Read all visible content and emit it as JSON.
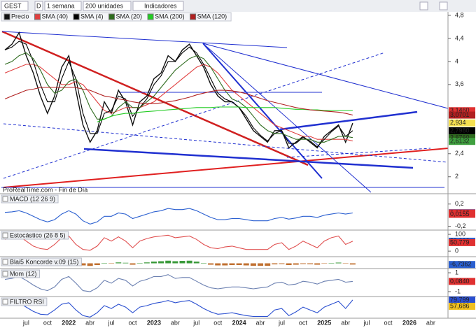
{
  "toolbar": {
    "symbol": "GEST",
    "period": "D",
    "interval": "1 semana",
    "units": "200 unidades",
    "indicators": "Indicadores"
  },
  "watermark": "ProRealTime.com - Fin de Día",
  "chart_data": [
    {
      "type": "line",
      "categories": [
        null,
        null,
        null,
        "jul",
        null,
        null,
        "oct",
        null,
        null,
        "2022",
        null,
        null,
        "abr",
        null,
        null,
        "jul",
        null,
        null,
        "oct",
        null,
        null,
        "2023",
        null,
        null,
        "abr",
        null,
        null,
        "jul",
        null,
        null,
        "oct",
        null,
        null,
        "2024",
        null,
        null,
        "abr",
        null,
        null,
        "jul",
        null,
        null,
        "oct",
        null,
        null,
        "2025",
        null,
        null,
        "abr",
        null,
        null,
        "jul",
        null,
        null,
        "oct",
        null,
        null,
        "2026",
        null,
        null,
        "abr"
      ],
      "series": [
        {
          "name": "Precio",
          "color": "#111111",
          "values": [
            4.2,
            4.3,
            4.5,
            4.1,
            3.8,
            3.4,
            3.1,
            3.4,
            3.9,
            4.1,
            3.5,
            2.9,
            2.6,
            2.8,
            3.3,
            3.1,
            3.5,
            3.3,
            2.9,
            3.3,
            3.4,
            3.7,
            3.8,
            4.1,
            4.0,
            4.2,
            4.3,
            4.1,
            3.9,
            3.6,
            3.4,
            3.3,
            3.3,
            3.2,
            3.0,
            2.8,
            2.7,
            2.6,
            2.8,
            2.8,
            2.5,
            2.6,
            2.7,
            2.6,
            2.5,
            2.7,
            2.8,
            2.9,
            2.6,
            2.93,
            null,
            null,
            null,
            null,
            null,
            null,
            null,
            null,
            null,
            null,
            null
          ]
        },
        {
          "name": "SMA (40)",
          "color": "#e04040",
          "values": [
            3.8,
            3.85,
            3.9,
            3.95,
            3.95,
            3.9,
            3.8,
            3.7,
            3.6,
            3.6,
            3.65,
            3.6,
            3.45,
            3.3,
            3.15,
            3.1,
            3.15,
            3.2,
            3.2,
            3.2,
            3.25,
            3.3,
            3.4,
            3.5,
            3.6,
            3.7,
            3.8,
            3.9,
            3.95,
            3.9,
            3.8,
            3.65,
            3.5,
            3.4,
            3.3,
            3.2,
            3.1,
            3.0,
            2.9,
            2.85,
            2.8,
            2.75,
            2.7,
            2.7,
            2.65,
            2.65,
            2.65,
            2.65,
            2.65,
            2.62,
            null,
            null,
            null,
            null,
            null,
            null,
            null,
            null,
            null,
            null,
            null
          ]
        },
        {
          "name": "SMA (4)",
          "color": "#000000",
          "values": [
            4.2,
            4.25,
            4.35,
            4.3,
            4.0,
            3.6,
            3.3,
            3.3,
            3.7,
            4.0,
            3.7,
            3.1,
            2.75,
            2.75,
            3.1,
            3.15,
            3.4,
            3.35,
            3.05,
            3.2,
            3.35,
            3.6,
            3.75,
            4.0,
            4.0,
            4.15,
            4.25,
            4.15,
            3.95,
            3.7,
            3.45,
            3.35,
            3.3,
            3.2,
            3.05,
            2.85,
            2.72,
            2.62,
            2.75,
            2.8,
            2.58,
            2.58,
            2.68,
            2.62,
            2.52,
            2.65,
            2.78,
            2.88,
            2.7,
            2.8,
            null,
            null,
            null,
            null,
            null,
            null,
            null,
            null,
            null,
            null,
            null
          ]
        },
        {
          "name": "SMA (20)",
          "color": "#2e6b1e",
          "values": [
            3.95,
            4.0,
            4.1,
            4.15,
            4.05,
            3.85,
            3.6,
            3.45,
            3.5,
            3.65,
            3.7,
            3.5,
            3.2,
            3.0,
            3.0,
            3.05,
            3.2,
            3.3,
            3.2,
            3.2,
            3.3,
            3.4,
            3.55,
            3.7,
            3.85,
            3.95,
            4.05,
            4.1,
            4.05,
            3.9,
            3.7,
            3.5,
            3.35,
            3.3,
            3.2,
            3.05,
            2.9,
            2.8,
            2.75,
            2.75,
            2.7,
            2.65,
            2.65,
            2.65,
            2.6,
            2.6,
            2.65,
            2.7,
            2.7,
            2.68,
            null,
            null,
            null,
            null,
            null,
            null,
            null,
            null,
            null,
            null,
            null
          ]
        },
        {
          "name": "SMA (200)",
          "color": "#22cc22",
          "values": [
            null,
            null,
            null,
            null,
            null,
            null,
            null,
            null,
            null,
            null,
            null,
            null,
            null,
            2.95,
            3.0,
            3.05,
            3.08,
            3.1,
            3.1,
            3.12,
            3.13,
            3.14,
            3.15,
            3.16,
            3.17,
            3.18,
            3.19,
            3.2,
            3.2,
            3.2,
            3.21,
            3.21,
            3.21,
            3.21,
            3.2,
            3.2,
            3.2,
            3.2,
            3.2,
            3.19,
            3.18,
            3.17,
            3.17,
            3.16,
            3.16,
            3.15,
            3.15,
            3.15,
            3.15,
            3.15,
            null,
            null,
            null,
            null,
            null,
            null,
            null,
            null,
            null,
            null,
            null
          ]
        },
        {
          "name": "SMA (120)",
          "color": "#b02020",
          "values": [
            3.35,
            3.4,
            3.45,
            3.5,
            3.52,
            3.55,
            3.55,
            3.55,
            3.55,
            3.55,
            3.55,
            3.52,
            3.5,
            3.45,
            3.4,
            3.38,
            3.35,
            3.33,
            3.3,
            3.28,
            3.27,
            3.27,
            3.28,
            3.3,
            3.32,
            3.35,
            3.38,
            3.42,
            3.45,
            3.48,
            3.5,
            3.5,
            3.49,
            3.47,
            3.44,
            3.4,
            3.36,
            3.32,
            3.29,
            3.26,
            3.23,
            3.2,
            3.18,
            3.16,
            3.15,
            3.14,
            3.13,
            3.12,
            3.1,
            3.07,
            null,
            null,
            null,
            null,
            null,
            null,
            null,
            null,
            null,
            null,
            null
          ]
        }
      ],
      "ylim": [
        1.73,
        4.86
      ],
      "yticks": [
        {
          "value": 4.8,
          "label": "4,8"
        },
        {
          "value": 4.4,
          "label": "4,4"
        },
        4,
        {
          "value": 3.6,
          "label": "3,6"
        },
        {
          "value": 2.4,
          "label": "2,4"
        },
        2
      ],
      "last_labels": [
        {
          "value": 3.146,
          "label": "3,1460",
          "color": "#e03030"
        },
        {
          "value": 3.0701,
          "label": "3,0701",
          "color": "#b02020"
        },
        {
          "value": 2.934,
          "label": "2,934",
          "color": "#f5e050"
        },
        {
          "value": 2.798,
          "label": "2,7980",
          "color": "#000000"
        },
        {
          "value": 2.676,
          "label": "2,6760",
          "color": "#2e6b1e"
        },
        {
          "value": 2.6132,
          "label": "2,6132",
          "color": "#3fa03f"
        }
      ],
      "legend": "top-left"
    },
    {
      "type": "line",
      "title": "MACD (12 26 9)",
      "series": [
        {
          "color": "#2a5fd0",
          "values": [
            0.05,
            0.06,
            0.08,
            0.04,
            -0.02,
            -0.08,
            -0.12,
            -0.08,
            0.02,
            0.08,
            0.02,
            -0.1,
            -0.16,
            -0.12,
            -0.02,
            -0.02,
            0.04,
            0.02,
            -0.06,
            -0.02,
            0.02,
            0.06,
            0.08,
            0.12,
            0.1,
            0.1,
            0.12,
            0.08,
            0.02,
            -0.04,
            -0.08,
            -0.08,
            -0.06,
            -0.06,
            -0.08,
            -0.1,
            -0.1,
            -0.1,
            -0.06,
            -0.04,
            -0.07,
            -0.05,
            -0.02,
            -0.02,
            -0.04,
            0.0,
            0.02,
            0.04,
            0.02,
            0.04,
            null,
            null,
            null,
            null,
            null,
            null,
            null,
            null,
            null,
            null,
            null
          ]
        }
      ],
      "ylim": [
        -0.28,
        0.36
      ],
      "yticks": [
        {
          "value": 0.2,
          "label": "0,2"
        },
        {
          "value": -0.2,
          "label": "-0,2"
        }
      ],
      "last_labels": [
        {
          "value": 0.0443,
          "label": "0,0443",
          "color": "#2a5fd0"
        },
        {
          "value": 0.0398,
          "label": "0,0398",
          "color": "#e03030"
        },
        {
          "value": 0.0155,
          "label": "0,0155",
          "color": "#e03030"
        }
      ]
    },
    {
      "type": "line",
      "title": "Estocástico (26 8 5)",
      "series": [
        {
          "color": "#e05050",
          "values": [
            70,
            80,
            90,
            60,
            30,
            15,
            10,
            40,
            80,
            90,
            40,
            10,
            5,
            30,
            80,
            60,
            85,
            60,
            20,
            60,
            75,
            85,
            90,
            95,
            80,
            85,
            90,
            70,
            40,
            20,
            15,
            25,
            30,
            20,
            10,
            10,
            10,
            10,
            40,
            50,
            10,
            30,
            60,
            40,
            20,
            60,
            80,
            90,
            40,
            59,
            null,
            null,
            null,
            null,
            null,
            null,
            null,
            null,
            null,
            null,
            null
          ]
        }
      ],
      "ylim": [
        -37,
        117
      ],
      "yticks": [
        100,
        0
      ],
      "last_labels": [
        {
          "value": 59.022,
          "label": "59,022",
          "color": "#2a5fd0"
        },
        {
          "value": 50.779,
          "label": "50,779",
          "color": "#e03030"
        }
      ]
    },
    {
      "type": "bar",
      "title": "Blai5 Koncorde v.09 (15)",
      "series": [
        {
          "color": "#c07030",
          "values": [
            5,
            8,
            10,
            5,
            -5,
            -10,
            -15,
            -5,
            5,
            10,
            0,
            -12,
            -15,
            -10,
            0,
            -2,
            5,
            3,
            -8,
            0,
            5,
            10,
            12,
            15,
            12,
            14,
            15,
            10,
            0,
            -8,
            -12,
            -12,
            -10,
            -10,
            -12,
            -14,
            -14,
            -14,
            -6,
            -4,
            -10,
            -8,
            -4,
            -5,
            -8,
            -2,
            2,
            4,
            -2,
            -7,
            null,
            null,
            null,
            null,
            null,
            null,
            null,
            null,
            null,
            null,
            null
          ]
        }
      ],
      "ylim": [
        -30,
        30
      ],
      "yticks": [],
      "last_labels": [
        {
          "value": -6.7362,
          "label": "-6,7362",
          "color": "#2a5fd0"
        }
      ]
    },
    {
      "type": "line",
      "title": "Mom (12)",
      "series": [
        {
          "color": "#6a7fb0",
          "values": [
            0.3,
            0.4,
            0.6,
            0.2,
            -0.3,
            -0.7,
            -0.9,
            -0.5,
            0.3,
            0.6,
            -0.1,
            -0.9,
            -1.0,
            -0.6,
            0.2,
            -0.1,
            0.4,
            0.2,
            -0.4,
            0.1,
            0.3,
            0.6,
            0.6,
            0.8,
            0.4,
            0.5,
            0.5,
            0.1,
            -0.3,
            -0.6,
            -0.7,
            -0.6,
            -0.5,
            -0.5,
            -0.6,
            -0.7,
            -0.6,
            -0.5,
            -0.1,
            0.0,
            -0.3,
            -0.2,
            0.1,
            0.0,
            -0.2,
            0.1,
            0.2,
            0.3,
            0.0,
            0.08,
            null,
            null,
            null,
            null,
            null,
            null,
            null,
            null,
            null,
            null,
            null
          ]
        }
      ],
      "ylim": [
        -1.52,
        1.3
      ],
      "yticks": [
        1,
        -1
      ],
      "last_labels": [
        {
          "value": 0.084,
          "label": "0,0840",
          "color": "#e03030"
        }
      ]
    },
    {
      "type": "line",
      "title": "FILTRO RSI",
      "series": [
        {
          "color": "#2a4fd0",
          "values": [
            60,
            65,
            70,
            55,
            40,
            30,
            28,
            45,
            65,
            70,
            45,
            25,
            20,
            35,
            60,
            50,
            65,
            55,
            35,
            55,
            60,
            68,
            72,
            78,
            70,
            75,
            78,
            65,
            50,
            38,
            30,
            32,
            35,
            30,
            25,
            22,
            22,
            22,
            45,
            50,
            25,
            38,
            55,
            45,
            35,
            55,
            65,
            75,
            50,
            79.8,
            null,
            null,
            null,
            null,
            null,
            null,
            null,
            null,
            null,
            null,
            null
          ]
        }
      ],
      "ylim": [
        16,
        87
      ],
      "yticks": [],
      "last_labels": [
        {
          "value": 79.799,
          "label": "79,799",
          "color": "#2a4fd0"
        },
        {
          "value": 57.686,
          "label": "57,686",
          "color": "#f0c020"
        }
      ]
    }
  ]
}
